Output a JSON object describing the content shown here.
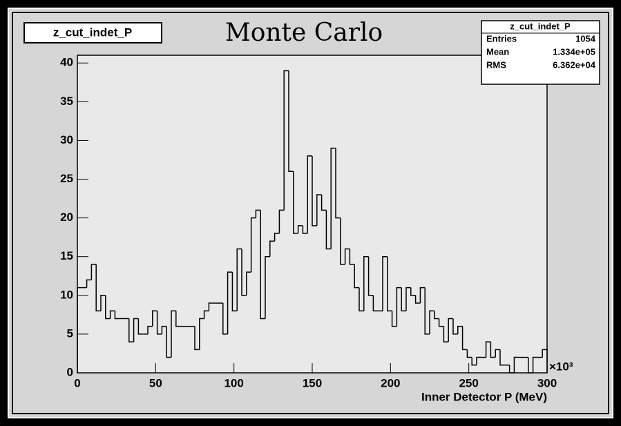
{
  "chart_data": {
    "type": "histogram",
    "title": "Monte Carlo",
    "name_label": "z_cut_indet_P",
    "xlabel": "Inner Detector P (MeV)",
    "x_exponent_label": "×10³",
    "stats": {
      "title": "z_cut_indet_P",
      "rows": [
        [
          "Entries",
          "1054"
        ],
        [
          "Mean",
          "1.334e+05"
        ],
        [
          "RMS",
          "6.362e+04"
        ]
      ]
    },
    "bins": [
      0,
      3,
      6,
      9,
      12,
      15,
      18,
      21,
      24,
      27,
      30,
      33,
      36,
      39,
      42,
      45,
      48,
      51,
      54,
      57,
      60,
      63,
      66,
      69,
      72,
      75,
      78,
      81,
      84,
      87,
      90,
      93,
      96,
      99,
      102,
      105,
      108,
      111,
      114,
      117,
      120,
      123,
      126,
      129,
      132,
      135,
      138,
      141,
      144,
      147,
      150,
      153,
      156,
      159,
      162,
      165,
      168,
      171,
      174,
      177,
      180,
      183,
      186,
      189,
      192,
      195,
      198,
      201,
      204,
      207,
      210,
      213,
      216,
      219,
      222,
      225,
      228,
      231,
      234,
      237,
      240,
      243,
      246,
      249,
      252,
      255,
      258,
      261,
      264,
      267,
      270,
      273,
      276,
      279,
      282,
      285,
      288,
      291,
      294,
      297,
      300
    ],
    "values": [
      11,
      11,
      12,
      14,
      8,
      10,
      7,
      8,
      7,
      7,
      7,
      4,
      7,
      5,
      5,
      6,
      8,
      5,
      6,
      2,
      8,
      6,
      6,
      6,
      6,
      3,
      7,
      8,
      9,
      9,
      9,
      5,
      13,
      8,
      16,
      10,
      13,
      20,
      21,
      7,
      15,
      17,
      18,
      21,
      39,
      26,
      18,
      19,
      18,
      28,
      19,
      23,
      21,
      16,
      29,
      20,
      14,
      16,
      14,
      11,
      8,
      15,
      10,
      8,
      8,
      15,
      8,
      6,
      11,
      8,
      11,
      10,
      9,
      11,
      5,
      8,
      7,
      6,
      4,
      7,
      5,
      6,
      3,
      2,
      1,
      2,
      2,
      4,
      2,
      3,
      1,
      1,
      0,
      2,
      2,
      2,
      0,
      2,
      2,
      3
    ],
    "color": "#000000",
    "xlim": [
      0,
      300
    ],
    "xticks": [
      0,
      50,
      100,
      150,
      200,
      250,
      300
    ],
    "ylim": [
      0,
      41
    ],
    "yticks": [
      0,
      5,
      10,
      15,
      20,
      25,
      30,
      35,
      40
    ]
  }
}
